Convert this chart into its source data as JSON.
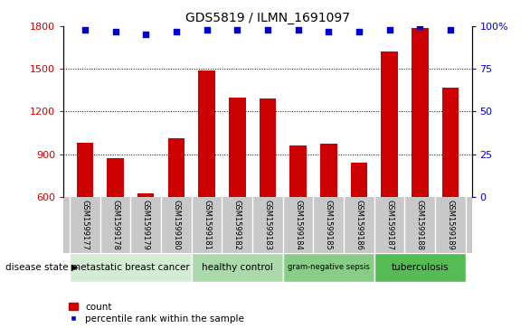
{
  "title": "GDS5819 / ILMN_1691097",
  "samples": [
    "GSM1599177",
    "GSM1599178",
    "GSM1599179",
    "GSM1599180",
    "GSM1599181",
    "GSM1599182",
    "GSM1599183",
    "GSM1599184",
    "GSM1599185",
    "GSM1599186",
    "GSM1599187",
    "GSM1599188",
    "GSM1599189"
  ],
  "counts": [
    980,
    870,
    625,
    1010,
    1490,
    1300,
    1290,
    960,
    975,
    840,
    1620,
    1790,
    1370
  ],
  "percentiles": [
    98,
    97,
    95,
    97,
    98,
    98,
    98,
    98,
    97,
    97,
    98,
    100,
    98
  ],
  "bar_color": "#cc0000",
  "dot_color": "#0000cc",
  "ylim_left": [
    600,
    1800
  ],
  "ylim_right": [
    0,
    100
  ],
  "yticks_left": [
    600,
    900,
    1200,
    1500,
    1800
  ],
  "yticks_right": [
    0,
    25,
    50,
    75,
    100
  ],
  "disease_groups": [
    {
      "label": "metastatic breast cancer",
      "start": 0,
      "end": 4,
      "color": "#d4ecd4"
    },
    {
      "label": "healthy control",
      "start": 4,
      "end": 7,
      "color": "#aadaaa"
    },
    {
      "label": "gram-negative sepsis",
      "start": 7,
      "end": 10,
      "color": "#88cc88"
    },
    {
      "label": "tuberculosis",
      "start": 10,
      "end": 13,
      "color": "#55bb55"
    }
  ],
  "legend_count_label": "count",
  "legend_percentile_label": "percentile rank within the sample",
  "disease_state_label": "disease state",
  "tick_label_area_color": "#c8c8c8",
  "grid_color": "#000000"
}
